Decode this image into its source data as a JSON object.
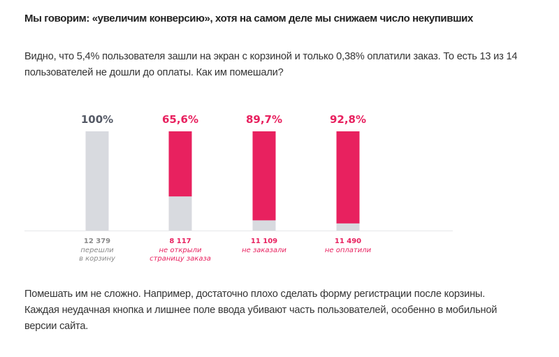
{
  "title": "Мы говорим: «увеличим конверсию», хотя на самом деле мы снижаем число некупивших",
  "intro": "Видно, что 5,4% пользователя зашли на экран с корзиной и только 0,38% оплатили заказ. То есть 13 из 14 пользователей не дошли до оплаты. Как им помешали?",
  "outro": "Помешать им не сложно. Например, достаточно плохо сделать форму регистрации после корзины. Каждая неудачная кнопка и лишнее поле ввода убивают часть пользователей, особенно в мобильной версии сайта.",
  "colors": {
    "accent": "#e8215f",
    "base": "#d8dadf",
    "neutral_text": "#555a66",
    "muted_text": "#8a8a8a"
  },
  "chart_data": {
    "type": "bar",
    "stacked": true,
    "ylim": [
      0,
      100
    ],
    "grid": false,
    "categories": [
      "перешли в корзину",
      "не открыли страницу заказа",
      "не заказали",
      "не оплатили"
    ],
    "bars": [
      {
        "percent_label": "100%",
        "dropoff_percent": 0,
        "count": "12 379",
        "label_lines": [
          "перешли",
          "в корзину"
        ],
        "highlight": false
      },
      {
        "percent_label": "65,6%",
        "dropoff_percent": 65.6,
        "count": "8 117",
        "label_lines": [
          "не открыли",
          "страницу заказа"
        ],
        "highlight": true
      },
      {
        "percent_label": "89,7%",
        "dropoff_percent": 89.7,
        "count": "11 109",
        "label_lines": [
          "не заказали"
        ],
        "highlight": true
      },
      {
        "percent_label": "92,8%",
        "dropoff_percent": 92.8,
        "count": "11 490",
        "label_lines": [
          "не оплатили"
        ],
        "highlight": true
      }
    ]
  }
}
